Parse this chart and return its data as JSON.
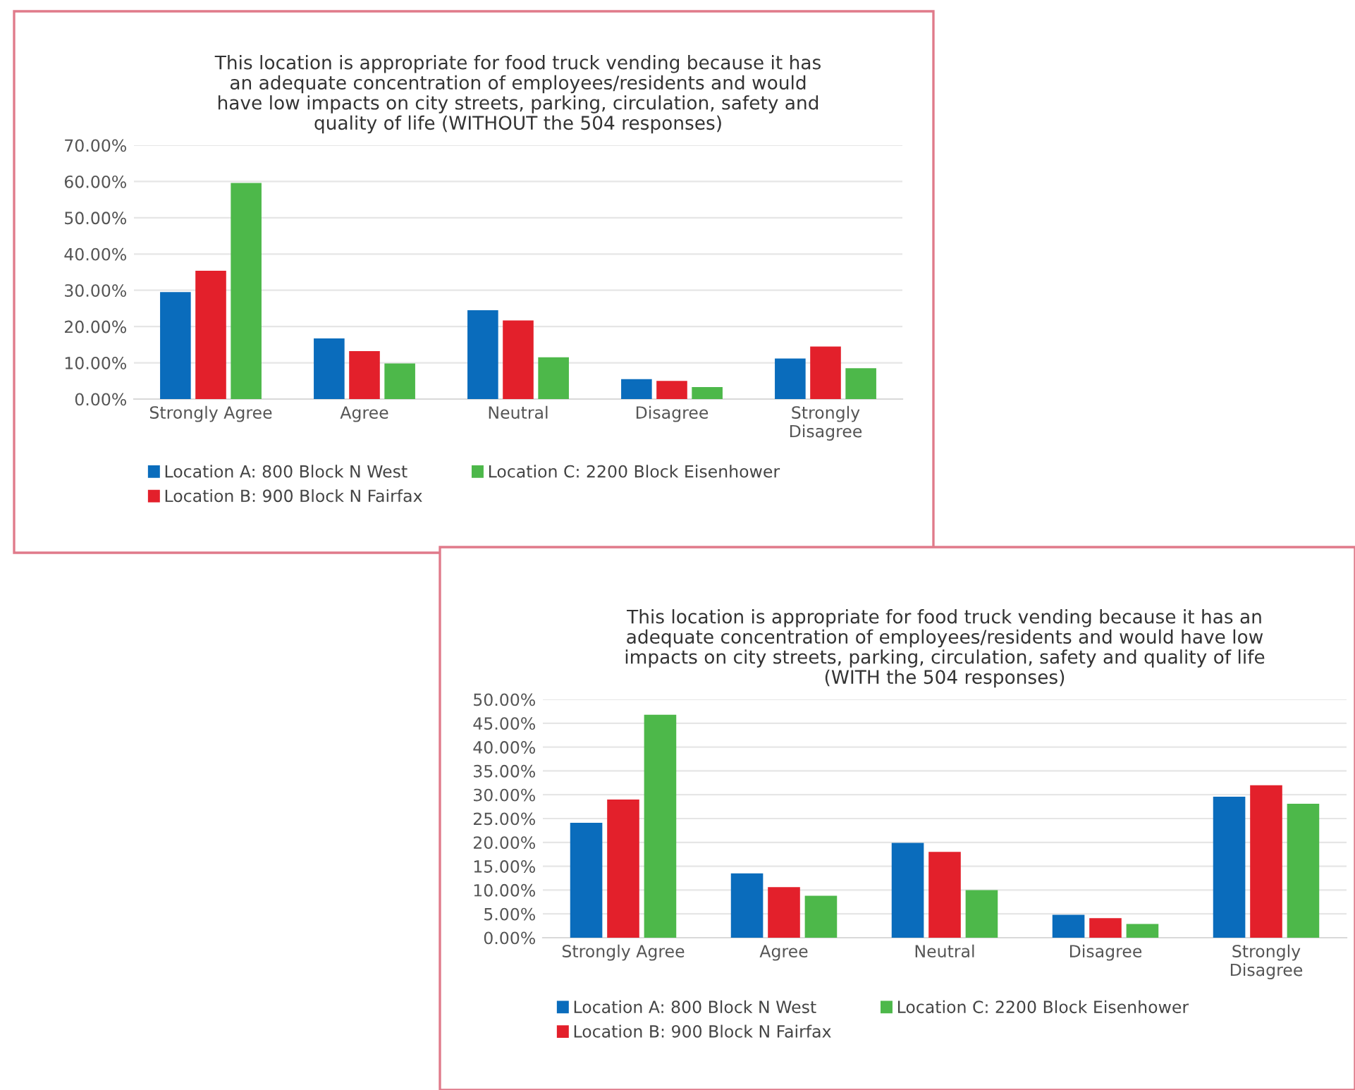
{
  "chart_data": [
    {
      "type": "bar",
      "title": "This location is appropriate for food truck vending because it has\nan adequate concentration of employees/residents and would\nhave low impacts on city streets, parking, circulation, safety and\nquality of life (WITHOUT the 504 responses)",
      "categories": [
        "Strongly Agree",
        "Agree",
        "Neutral",
        "Disagree",
        "Strongly\nDisagree"
      ],
      "series": [
        {
          "name": "Location A: 800 Block N West",
          "color": "#0a6cbc",
          "values": [
            29.5,
            16.7,
            24.5,
            5.5,
            11.2
          ]
        },
        {
          "name": "Location B: 900 Block N Fairfax",
          "color": "#e3202b",
          "values": [
            35.4,
            13.2,
            21.7,
            5.0,
            14.5
          ]
        },
        {
          "name": "Location C: 2200 Block Eisenhower",
          "color": "#4db84a",
          "values": [
            59.6,
            9.8,
            11.5,
            3.3,
            8.5
          ]
        }
      ],
      "ylim": [
        0,
        70
      ],
      "yticks": [
        {
          "value": 0,
          "label": "0.00%"
        },
        {
          "value": 10,
          "label": "10.00%"
        },
        {
          "value": 20,
          "label": "20.00%"
        },
        {
          "value": 30,
          "label": "30.00%"
        },
        {
          "value": 40,
          "label": "40.00%"
        },
        {
          "value": 50,
          "label": "50.00%"
        },
        {
          "value": 60,
          "label": "60.00%"
        },
        {
          "value": 70,
          "label": "70.00%"
        }
      ],
      "grid": "y",
      "legend": "bottom"
    },
    {
      "type": "bar",
      "title": "This location is appropriate for food truck vending because it has an\nadequate concentration of employees/residents and would have low\nimpacts on city streets, parking, circulation, safety and quality of life\n(WITH the 504 responses)",
      "categories": [
        "Strongly Agree",
        "Agree",
        "Neutral",
        "Disagree",
        "Strongly\nDisagree"
      ],
      "series": [
        {
          "name": "Location A: 800 Block N West",
          "color": "#0a6cbc",
          "values": [
            24.1,
            13.5,
            19.9,
            4.8,
            29.6
          ]
        },
        {
          "name": "Location B: 900 Block N Fairfax",
          "color": "#e3202b",
          "values": [
            29.0,
            10.6,
            18.0,
            4.1,
            32.0
          ]
        },
        {
          "name": "Location C: 2200 Block Eisenhower",
          "color": "#4db84a",
          "values": [
            46.8,
            8.8,
            10.0,
            2.9,
            28.1
          ]
        }
      ],
      "ylim": [
        0,
        50
      ],
      "yticks": [
        {
          "value": 0,
          "label": "0.00%"
        },
        {
          "value": 5,
          "label": "5.00%"
        },
        {
          "value": 10,
          "label": "10.00%"
        },
        {
          "value": 15,
          "label": "15.00%"
        },
        {
          "value": 20,
          "label": "20.00%"
        },
        {
          "value": 25,
          "label": "25.00%"
        },
        {
          "value": 30,
          "label": "30.00%"
        },
        {
          "value": 35,
          "label": "35.00%"
        },
        {
          "value": 40,
          "label": "40.00%"
        },
        {
          "value": 45,
          "label": "45.00%"
        },
        {
          "value": 50,
          "label": "50.00%"
        }
      ],
      "grid": "y",
      "legend": "bottom"
    }
  ]
}
